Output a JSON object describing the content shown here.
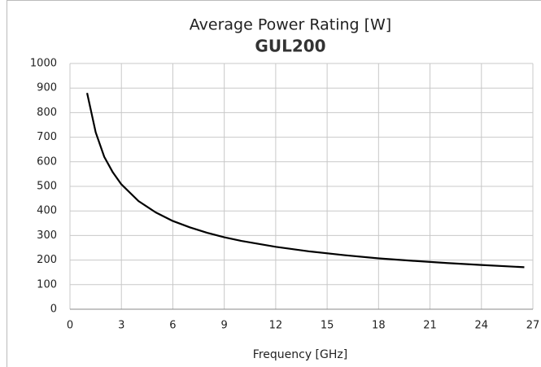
{
  "chart_data": {
    "type": "line",
    "title": "Average Power Rating [W]",
    "subtitle": "GUL200",
    "xlabel": "Frequency [GHz]",
    "x": [
      1,
      1.5,
      2,
      2.5,
      3,
      4,
      5,
      6,
      7,
      8,
      9,
      10,
      12,
      14,
      16,
      18,
      20,
      22,
      24,
      26.5
    ],
    "series": [
      {
        "name": "GUL200",
        "color": "#000000",
        "values": [
          880,
          720,
          620,
          557,
          508,
          440,
          394,
          359,
          333,
          311,
          293,
          278,
          254,
          235,
          220,
          207,
          197,
          188,
          180,
          171
        ]
      }
    ],
    "xlim": [
      0,
      27
    ],
    "xticks": [
      0,
      3,
      6,
      9,
      12,
      15,
      18,
      21,
      24,
      27
    ],
    "ylim": [
      0,
      1000
    ],
    "yticks": [
      0,
      100,
      200,
      300,
      400,
      500,
      600,
      700,
      800,
      900,
      1000
    ],
    "grid": true
  }
}
